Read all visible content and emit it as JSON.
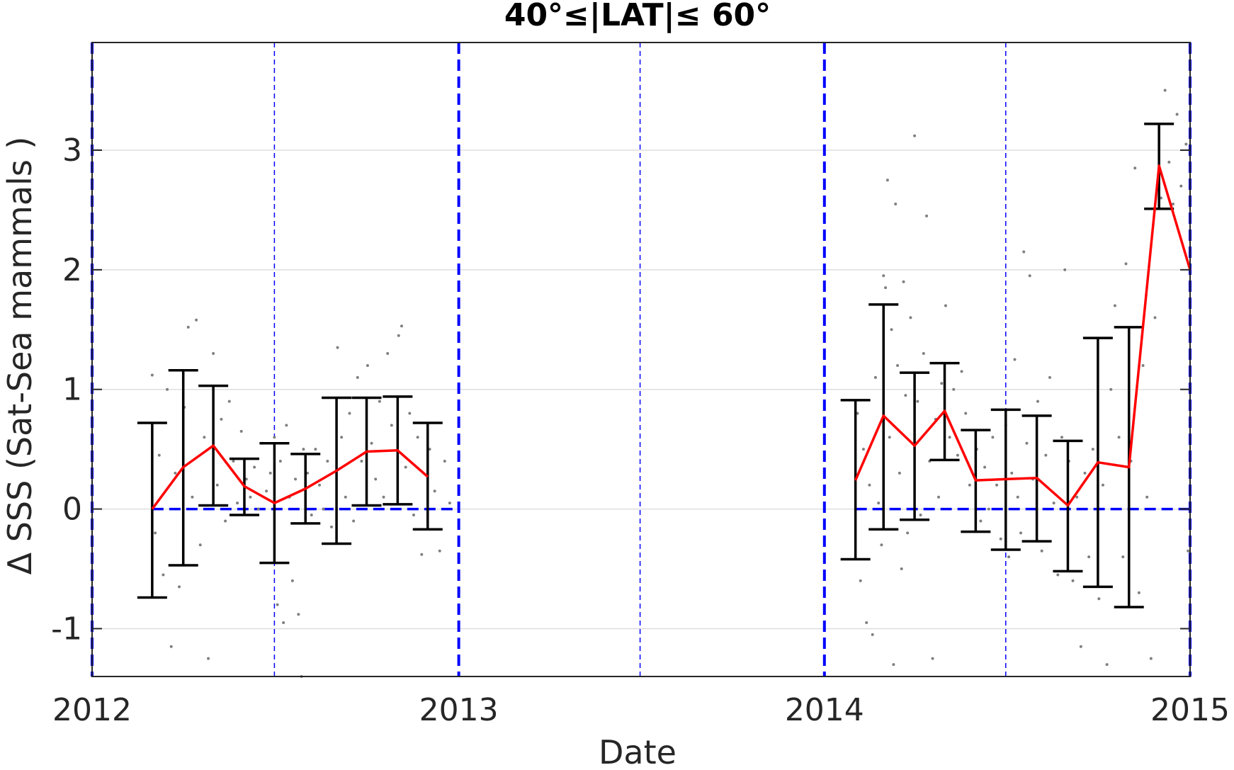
{
  "chart_data": {
    "type": "scatter",
    "title": "40°≤|LAT|≤ 60°",
    "xlabel": "Date",
    "ylabel": "Δ SSS (Sat-Sea mammals )",
    "xlim": [
      "2012-01-01",
      "2015-01-01"
    ],
    "ylim": [
      -1.4,
      3.9
    ],
    "x_ticks": [
      {
        "date": "2012-01-01",
        "label": "2012"
      },
      {
        "date": "2013-01-01",
        "label": "2013"
      },
      {
        "date": "2014-01-01",
        "label": "2014"
      },
      {
        "date": "2015-01-01",
        "label": "2015"
      }
    ],
    "y_ticks": [
      {
        "value": -1,
        "label": "-1"
      },
      {
        "value": 0,
        "label": "0"
      },
      {
        "value": 1,
        "label": "1"
      },
      {
        "value": 2,
        "label": "2"
      },
      {
        "value": 3,
        "label": "3"
      }
    ],
    "grid": true,
    "colors": {
      "mean_line": "#ff0000",
      "error_bars": "#000000",
      "points": "#7f7f7f",
      "reference_lines": "#0000ff"
    },
    "year_lines": [
      "2012-01-01",
      "2013-01-01",
      "2014-01-01",
      "2015-01-01"
    ],
    "half_year_lines": [
      "2012-07-01",
      "2013-07-01",
      "2014-07-01"
    ],
    "zero_line_segments": [
      [
        "2012-03-01",
        "2013-01-01"
      ],
      [
        "2014-02-01",
        "2015-01-01"
      ]
    ],
    "monthly_series": [
      {
        "date": "2012-03-01",
        "mean": 0.0,
        "lower": -0.74,
        "upper": 0.72
      },
      {
        "date": "2012-04-01",
        "mean": 0.35,
        "lower": -0.47,
        "upper": 1.16
      },
      {
        "date": "2012-05-01",
        "mean": 0.53,
        "lower": 0.03,
        "upper": 1.03
      },
      {
        "date": "2012-06-01",
        "mean": 0.19,
        "lower": -0.05,
        "upper": 0.42
      },
      {
        "date": "2012-07-01",
        "mean": 0.05,
        "lower": -0.45,
        "upper": 0.55
      },
      {
        "date": "2012-08-01",
        "mean": 0.17,
        "lower": -0.12,
        "upper": 0.46
      },
      {
        "date": "2012-09-01",
        "mean": 0.32,
        "lower": -0.29,
        "upper": 0.93
      },
      {
        "date": "2012-10-01",
        "mean": 0.48,
        "lower": 0.03,
        "upper": 0.93
      },
      {
        "date": "2012-11-01",
        "mean": 0.49,
        "lower": 0.04,
        "upper": 0.94
      },
      {
        "date": "2012-12-01",
        "mean": 0.27,
        "lower": -0.17,
        "upper": 0.72
      },
      {
        "date": "2014-02-01",
        "mean": 0.24,
        "lower": -0.42,
        "upper": 0.91
      },
      {
        "date": "2014-03-01",
        "mean": 0.78,
        "lower": -0.17,
        "upper": 1.71
      },
      {
        "date": "2014-04-01",
        "mean": 0.53,
        "lower": -0.09,
        "upper": 1.14
      },
      {
        "date": "2014-05-01",
        "mean": 0.82,
        "lower": 0.41,
        "upper": 1.22
      },
      {
        "date": "2014-06-01",
        "mean": 0.24,
        "lower": -0.19,
        "upper": 0.66
      },
      {
        "date": "2014-07-01",
        "mean": 0.25,
        "lower": -0.34,
        "upper": 0.83
      },
      {
        "date": "2014-08-01",
        "mean": 0.26,
        "lower": -0.27,
        "upper": 0.78
      },
      {
        "date": "2014-09-01",
        "mean": 0.03,
        "lower": -0.52,
        "upper": 0.57
      },
      {
        "date": "2014-10-01",
        "mean": 0.39,
        "lower": -0.65,
        "upper": 1.43
      },
      {
        "date": "2014-11-01",
        "mean": 0.35,
        "lower": -0.82,
        "upper": 1.52
      },
      {
        "date": "2014-12-01",
        "mean": 2.87,
        "lower": 2.51,
        "upper": 3.22
      },
      {
        "date": "2015-01-01",
        "mean": 2.0
      }
    ],
    "scatter_points": [
      {
        "date": "2012-03-01",
        "y": 1.12
      },
      {
        "date": "2012-03-04",
        "y": -0.2
      },
      {
        "date": "2012-03-08",
        "y": 0.45
      },
      {
        "date": "2012-03-12",
        "y": -0.55
      },
      {
        "date": "2012-03-16",
        "y": 1.0
      },
      {
        "date": "2012-03-20",
        "y": -1.15
      },
      {
        "date": "2012-03-24",
        "y": 0.3
      },
      {
        "date": "2012-03-28",
        "y": -0.65
      },
      {
        "date": "2012-04-02",
        "y": 0.85
      },
      {
        "date": "2012-04-06",
        "y": 1.52
      },
      {
        "date": "2012-04-10",
        "y": 0.1
      },
      {
        "date": "2012-04-14",
        "y": 1.58
      },
      {
        "date": "2012-04-18",
        "y": -0.3
      },
      {
        "date": "2012-04-22",
        "y": 0.6
      },
      {
        "date": "2012-04-26",
        "y": -1.25
      },
      {
        "date": "2012-05-01",
        "y": 1.3
      },
      {
        "date": "2012-05-05",
        "y": 0.2
      },
      {
        "date": "2012-05-09",
        "y": 0.75
      },
      {
        "date": "2012-05-13",
        "y": -0.1
      },
      {
        "date": "2012-05-17",
        "y": 0.9
      },
      {
        "date": "2012-05-21",
        "y": 0.4
      },
      {
        "date": "2012-05-25",
        "y": 0.05
      },
      {
        "date": "2012-05-29",
        "y": 0.65
      },
      {
        "date": "2012-06-03",
        "y": 0.25
      },
      {
        "date": "2012-06-07",
        "y": 0.1
      },
      {
        "date": "2012-06-11",
        "y": 0.35
      },
      {
        "date": "2012-06-15",
        "y": 0.0
      },
      {
        "date": "2012-06-19",
        "y": 0.55
      },
      {
        "date": "2012-06-23",
        "y": 0.15
      },
      {
        "date": "2012-06-27",
        "y": 0.3
      },
      {
        "date": "2012-07-01",
        "y": 0.6
      },
      {
        "date": "2012-07-04",
        "y": -0.8
      },
      {
        "date": "2012-07-07",
        "y": 0.4
      },
      {
        "date": "2012-07-10",
        "y": -0.95
      },
      {
        "date": "2012-07-13",
        "y": 0.7
      },
      {
        "date": "2012-07-16",
        "y": 0.1
      },
      {
        "date": "2012-07-19",
        "y": -0.6
      },
      {
        "date": "2012-07-22",
        "y": 0.25
      },
      {
        "date": "2012-07-25",
        "y": -0.88
      },
      {
        "date": "2012-07-28",
        "y": -1.4
      },
      {
        "date": "2012-07-30",
        "y": 0.5
      },
      {
        "date": "2012-08-03",
        "y": 0.3
      },
      {
        "date": "2012-08-07",
        "y": -0.05
      },
      {
        "date": "2012-08-11",
        "y": 0.5
      },
      {
        "date": "2012-08-15",
        "y": 0.2
      },
      {
        "date": "2012-08-19",
        "y": 0.0
      },
      {
        "date": "2012-08-23",
        "y": 0.4
      },
      {
        "date": "2012-08-27",
        "y": -0.15
      },
      {
        "date": "2012-09-02",
        "y": 1.35
      },
      {
        "date": "2012-09-06",
        "y": 0.6
      },
      {
        "date": "2012-09-10",
        "y": 0.1
      },
      {
        "date": "2012-09-14",
        "y": 0.8
      },
      {
        "date": "2012-09-18",
        "y": -0.1
      },
      {
        "date": "2012-09-22",
        "y": 1.1
      },
      {
        "date": "2012-09-26",
        "y": 0.4
      },
      {
        "date": "2012-10-02",
        "y": 1.2
      },
      {
        "date": "2012-10-06",
        "y": 0.55
      },
      {
        "date": "2012-10-10",
        "y": 0.25
      },
      {
        "date": "2012-10-14",
        "y": 0.9
      },
      {
        "date": "2012-10-18",
        "y": 0.1
      },
      {
        "date": "2012-10-22",
        "y": 1.3
      },
      {
        "date": "2012-10-26",
        "y": 0.7
      },
      {
        "date": "2012-11-02",
        "y": 1.45
      },
      {
        "date": "2012-11-05",
        "y": 1.53
      },
      {
        "date": "2012-11-09",
        "y": 0.35
      },
      {
        "date": "2012-11-13",
        "y": 0.8
      },
      {
        "date": "2012-11-17",
        "y": -0.05
      },
      {
        "date": "2012-11-21",
        "y": 0.6
      },
      {
        "date": "2012-11-25",
        "y": -0.38
      },
      {
        "date": "2012-12-03",
        "y": 0.5
      },
      {
        "date": "2012-12-08",
        "y": 0.15
      },
      {
        "date": "2012-12-13",
        "y": -0.35
      },
      {
        "date": "2012-12-18",
        "y": 0.4
      },
      {
        "date": "2012-12-23",
        "y": 0.05
      },
      {
        "date": "2014-02-03",
        "y": 0.8
      },
      {
        "date": "2014-02-06",
        "y": -0.6
      },
      {
        "date": "2014-02-09",
        "y": 0.5
      },
      {
        "date": "2014-02-12",
        "y": -0.95
      },
      {
        "date": "2014-02-15",
        "y": 0.2
      },
      {
        "date": "2014-02-18",
        "y": -1.05
      },
      {
        "date": "2014-02-21",
        "y": 1.1
      },
      {
        "date": "2014-02-24",
        "y": 0.05
      },
      {
        "date": "2014-02-27",
        "y": -0.3
      },
      {
        "date": "2014-03-01",
        "y": 1.95
      },
      {
        "date": "2014-03-03",
        "y": 1.85
      },
      {
        "date": "2014-03-05",
        "y": 2.75
      },
      {
        "date": "2014-03-07",
        "y": 0.6
      },
      {
        "date": "2014-03-09",
        "y": 1.5
      },
      {
        "date": "2014-03-11",
        "y": -1.3
      },
      {
        "date": "2014-03-13",
        "y": 2.55
      },
      {
        "date": "2014-03-15",
        "y": 1.2
      },
      {
        "date": "2014-03-17",
        "y": 0.3
      },
      {
        "date": "2014-03-19",
        "y": -0.5
      },
      {
        "date": "2014-03-21",
        "y": 1.9
      },
      {
        "date": "2014-03-23",
        "y": 0.95
      },
      {
        "date": "2014-03-25",
        "y": -0.2
      },
      {
        "date": "2014-03-28",
        "y": 1.6
      },
      {
        "date": "2014-04-01",
        "y": 3.12
      },
      {
        "date": "2014-04-04",
        "y": 0.9
      },
      {
        "date": "2014-04-07",
        "y": -0.05
      },
      {
        "date": "2014-04-10",
        "y": 1.3
      },
      {
        "date": "2014-04-13",
        "y": 2.45
      },
      {
        "date": "2014-04-16",
        "y": 0.4
      },
      {
        "date": "2014-04-19",
        "y": -1.25
      },
      {
        "date": "2014-04-22",
        "y": 0.75
      },
      {
        "date": "2014-04-25",
        "y": 0.1
      },
      {
        "date": "2014-04-28",
        "y": 1.05
      },
      {
        "date": "2014-05-02",
        "y": 1.7
      },
      {
        "date": "2014-05-06",
        "y": 0.6
      },
      {
        "date": "2014-05-10",
        "y": 1.0
      },
      {
        "date": "2014-05-14",
        "y": 0.45
      },
      {
        "date": "2014-05-18",
        "y": 1.15
      },
      {
        "date": "2014-05-22",
        "y": 0.8
      },
      {
        "date": "2014-05-26",
        "y": 0.2
      },
      {
        "date": "2014-06-02",
        "y": 0.5
      },
      {
        "date": "2014-06-06",
        "y": -0.1
      },
      {
        "date": "2014-06-10",
        "y": 0.35
      },
      {
        "date": "2014-06-14",
        "y": 0.0
      },
      {
        "date": "2014-06-18",
        "y": 0.6
      },
      {
        "date": "2014-06-22",
        "y": 0.2
      },
      {
        "date": "2014-06-26",
        "y": -0.25
      },
      {
        "date": "2014-07-01",
        "y": 0.7
      },
      {
        "date": "2014-07-04",
        "y": -0.4
      },
      {
        "date": "2014-07-07",
        "y": 0.3
      },
      {
        "date": "2014-07-10",
        "y": 1.25
      },
      {
        "date": "2014-07-13",
        "y": 0.1
      },
      {
        "date": "2014-07-16",
        "y": -0.2
      },
      {
        "date": "2014-07-19",
        "y": 2.15
      },
      {
        "date": "2014-07-22",
        "y": 0.55
      },
      {
        "date": "2014-07-25",
        "y": 1.95
      },
      {
        "date": "2014-07-28",
        "y": 0.25
      },
      {
        "date": "2014-08-02",
        "y": 0.9
      },
      {
        "date": "2014-08-06",
        "y": -0.35
      },
      {
        "date": "2014-08-10",
        "y": 0.45
      },
      {
        "date": "2014-08-14",
        "y": 1.1
      },
      {
        "date": "2014-08-18",
        "y": 0.05
      },
      {
        "date": "2014-08-22",
        "y": -0.55
      },
      {
        "date": "2014-08-26",
        "y": 0.6
      },
      {
        "date": "2014-08-29",
        "y": 2.0
      },
      {
        "date": "2014-09-02",
        "y": 0.4
      },
      {
        "date": "2014-09-06",
        "y": -0.6
      },
      {
        "date": "2014-09-10",
        "y": 0.1
      },
      {
        "date": "2014-09-14",
        "y": -1.15
      },
      {
        "date": "2014-09-18",
        "y": 0.3
      },
      {
        "date": "2014-09-22",
        "y": -0.4
      },
      {
        "date": "2014-09-26",
        "y": 0.5
      },
      {
        "date": "2014-10-02",
        "y": -0.75
      },
      {
        "date": "2014-10-06",
        "y": 0.2
      },
      {
        "date": "2014-10-10",
        "y": -1.3
      },
      {
        "date": "2014-10-14",
        "y": 1.0
      },
      {
        "date": "2014-10-18",
        "y": 1.7
      },
      {
        "date": "2014-10-22",
        "y": 0.6
      },
      {
        "date": "2014-10-26",
        "y": -0.4
      },
      {
        "date": "2014-10-29",
        "y": 2.05
      },
      {
        "date": "2014-11-03",
        "y": 0.4
      },
      {
        "date": "2014-11-07",
        "y": 2.85
      },
      {
        "date": "2014-11-11",
        "y": -0.7
      },
      {
        "date": "2014-11-15",
        "y": 1.2
      },
      {
        "date": "2014-11-19",
        "y": 0.1
      },
      {
        "date": "2014-11-23",
        "y": -1.25
      },
      {
        "date": "2014-11-27",
        "y": 1.6
      },
      {
        "date": "2014-12-03",
        "y": 2.6
      },
      {
        "date": "2014-12-07",
        "y": 3.5
      },
      {
        "date": "2014-12-11",
        "y": 2.9
      },
      {
        "date": "2014-12-15",
        "y": 2.55
      },
      {
        "date": "2014-12-19",
        "y": 3.3
      },
      {
        "date": "2014-12-23",
        "y": 2.7
      },
      {
        "date": "2014-12-28",
        "y": 3.05
      },
      {
        "date": "2014-12-30",
        "y": -0.35
      }
    ]
  }
}
